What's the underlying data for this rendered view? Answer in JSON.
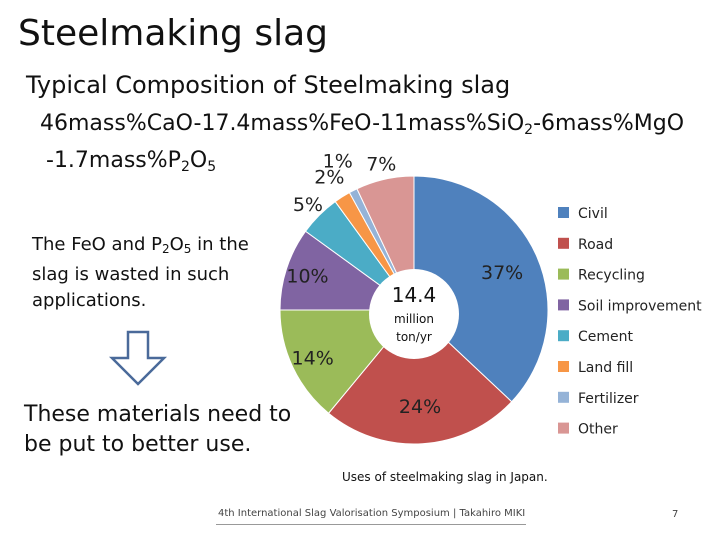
{
  "slide": {
    "title": "Steelmaking slag",
    "subtitle": "Typical Composition of Steelmaking slag",
    "formula_line1": {
      "p1": "46mass%CaO-17.4mass%FeO-11mass%SiO",
      "sub1": "2",
      "p2": "-6mass%MgO"
    },
    "formula_line2": {
      "p1": "-1.7mass%P",
      "sub1": "2",
      "p2": "O",
      "sub2": "5"
    },
    "note": {
      "p1": "The FeO and P",
      "sub1": "2",
      "p2": "O",
      "sub2": "5",
      "p3": " in the slag is wasted in such applications."
    },
    "conclusion": "These materials need to be put to better use.",
    "caption": "Uses of steelmaking slag in Japan.",
    "footer": "4th International Slag Valorisation Symposium | Takahiro MIKI",
    "page_number": "7"
  },
  "icons": {
    "arrow": "down-arrow-icon"
  },
  "colors": {
    "accent": "#4f81bd"
  },
  "chart_data": {
    "type": "pie",
    "title": "Uses of steelmaking slag in Japan.",
    "center_value": "14.4",
    "center_unit_line1": "million",
    "center_unit_line2": "ton/yr",
    "categories": [
      "Civil",
      "Road",
      "Recycling",
      "Soil improvement",
      "Cement",
      "Land fill",
      "Fertilizer",
      "Other"
    ],
    "values": [
      37,
      24,
      14,
      10,
      5,
      2,
      1,
      7
    ],
    "labels": [
      "37%",
      "24%",
      "14%",
      "10%",
      "5%",
      "2%",
      "1%",
      "7%"
    ],
    "colors": [
      "#4f81bd",
      "#c0504d",
      "#9bbb59",
      "#8064a2",
      "#4bacc6",
      "#f79646",
      "#95b3d7",
      "#d99694"
    ],
    "legend_position": "right"
  }
}
